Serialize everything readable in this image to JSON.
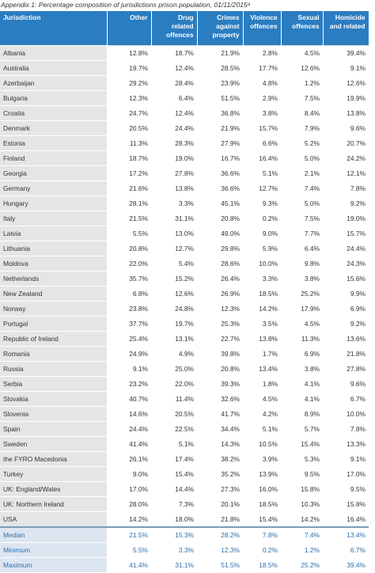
{
  "title": "Appendix 1: Percentage composition of jurisdictions prison population, 01/11/2015ᵃ",
  "table": {
    "header": [
      "Jurisdiction",
      "Other",
      "Drug related offences",
      "Crimes against property",
      "Violence offences",
      "Sexual offences",
      "Homicide and related"
    ],
    "rows": [
      [
        "Albania",
        "12.8%",
        "18.7%",
        "21.9%",
        "2.8%",
        "4.5%",
        "39.4%"
      ],
      [
        "Australia",
        "19.7%",
        "12.4%",
        "28.5%",
        "17.7%",
        "12.6%",
        "9.1%"
      ],
      [
        "Azerbaijan",
        "29.2%",
        "28.4%",
        "23.9%",
        "4.8%",
        "1.2%",
        "12.6%"
      ],
      [
        "Bulgaria",
        "12.3%",
        "6.4%",
        "51.5%",
        "2.9%",
        "7.5%",
        "19.9%"
      ],
      [
        "Croatia",
        "24.7%",
        "12.4%",
        "36.8%",
        "3.8%",
        "8.4%",
        "13.8%"
      ],
      [
        "Denmark",
        "20.5%",
        "24.4%",
        "21.9%",
        "15.7%",
        "7.9%",
        "9.6%"
      ],
      [
        "Estonia",
        "11.3%",
        "28.3%",
        "27.9%",
        "6.6%",
        "5.2%",
        "20.7%"
      ],
      [
        "Finland",
        "18.7%",
        "19.0%",
        "16.7%",
        "16.4%",
        "5.0%",
        "24.2%"
      ],
      [
        "Georgia",
        "17.2%",
        "27.8%",
        "36.6%",
        "5.1%",
        "2.1%",
        "12.1%"
      ],
      [
        "Germany",
        "21.6%",
        "13.8%",
        "36.6%",
        "12.7%",
        "7.4%",
        "7.8%"
      ],
      [
        "Hungary",
        "28.1%",
        "3.3%",
        "45.1%",
        "9.3%",
        "5.0%",
        "9.2%"
      ],
      [
        "Italy",
        "21.5%",
        "31.1%",
        "20.8%",
        "0.2%",
        "7.5%",
        "19.0%"
      ],
      [
        "Latvia",
        "5.5%",
        "13.0%",
        "49.0%",
        "9.0%",
        "7.7%",
        "15.7%"
      ],
      [
        "Lithuania",
        "20.8%",
        "12.7%",
        "29.8%",
        "5.9%",
        "6.4%",
        "24.4%"
      ],
      [
        "Moldova",
        "22.0%",
        "5.4%",
        "28.6%",
        "10.0%",
        "9.8%",
        "24.3%"
      ],
      [
        "Netherlands",
        "35.7%",
        "15.2%",
        "26.4%",
        "3.3%",
        "3.8%",
        "15.6%"
      ],
      [
        "New Zealand",
        "6.8%",
        "12.6%",
        "26.9%",
        "18.5%",
        "25.2%",
        "9.9%"
      ],
      [
        "Norway",
        "23.8%",
        "24.8%",
        "12.3%",
        "14.2%",
        "17.9%",
        "6.9%"
      ],
      [
        "Portugal",
        "37.7%",
        "19.7%",
        "25.3%",
        "3.5%",
        "4.5%",
        "9.2%"
      ],
      [
        "Republic of Ireland",
        "25.4%",
        "13.1%",
        "22.7%",
        "13.8%",
        "11.3%",
        "13.6%"
      ],
      [
        "Romania",
        "24.9%",
        "4.9%",
        "39.8%",
        "1.7%",
        "6.9%",
        "21.8%"
      ],
      [
        "Russia",
        "9.1%",
        "25.0%",
        "20.8%",
        "13.4%",
        "3.8%",
        "27.8%"
      ],
      [
        "Serbia",
        "23.2%",
        "22.0%",
        "39.3%",
        "1.8%",
        "4.1%",
        "9.6%"
      ],
      [
        "Slovakia",
        "40.7%",
        "11.4%",
        "32.6%",
        "4.5%",
        "4.1%",
        "6.7%"
      ],
      [
        "Slovenia",
        "14.6%",
        "20.5%",
        "41.7%",
        "4.2%",
        "8.9%",
        "10.0%"
      ],
      [
        "Spain",
        "24.4%",
        "22.5%",
        "34.4%",
        "5.1%",
        "5.7%",
        "7.8%"
      ],
      [
        "Sweden",
        "41.4%",
        "5.1%",
        "14.3%",
        "10.5%",
        "15.4%",
        "13.3%"
      ],
      [
        "the FYRO Macedonia",
        "26.1%",
        "17.4%",
        "38.2%",
        "3.9%",
        "5.3%",
        "9.1%"
      ],
      [
        "Turkey",
        "9.0%",
        "15.4%",
        "35.2%",
        "13.9%",
        "9.5%",
        "17.0%"
      ],
      [
        "UK: England/Wales",
        "17.0%",
        "14.4%",
        "27.3%",
        "16.0%",
        "15.8%",
        "9.5%"
      ],
      [
        "UK: Northern Ireland",
        "28.0%",
        "7.3%",
        "20.1%",
        "18.5%",
        "10.3%",
        "15.8%"
      ],
      [
        "USA",
        "14.2%",
        "18.0%",
        "21.8%",
        "15.4%",
        "14.2%",
        "16.4%"
      ]
    ],
    "summary": [
      [
        "Median",
        "21.5%",
        "15.3%",
        "28.2%",
        "7.8%",
        "7.4%",
        "13.4%"
      ],
      [
        "Minimum",
        "5.5%",
        "3.3%",
        "12.3%",
        "0.2%",
        "1.2%",
        "6.7%"
      ],
      [
        "Maximum",
        "41.4%",
        "31.1%",
        "51.5%",
        "18.5%",
        "25.2%",
        "39.4%"
      ]
    ]
  }
}
